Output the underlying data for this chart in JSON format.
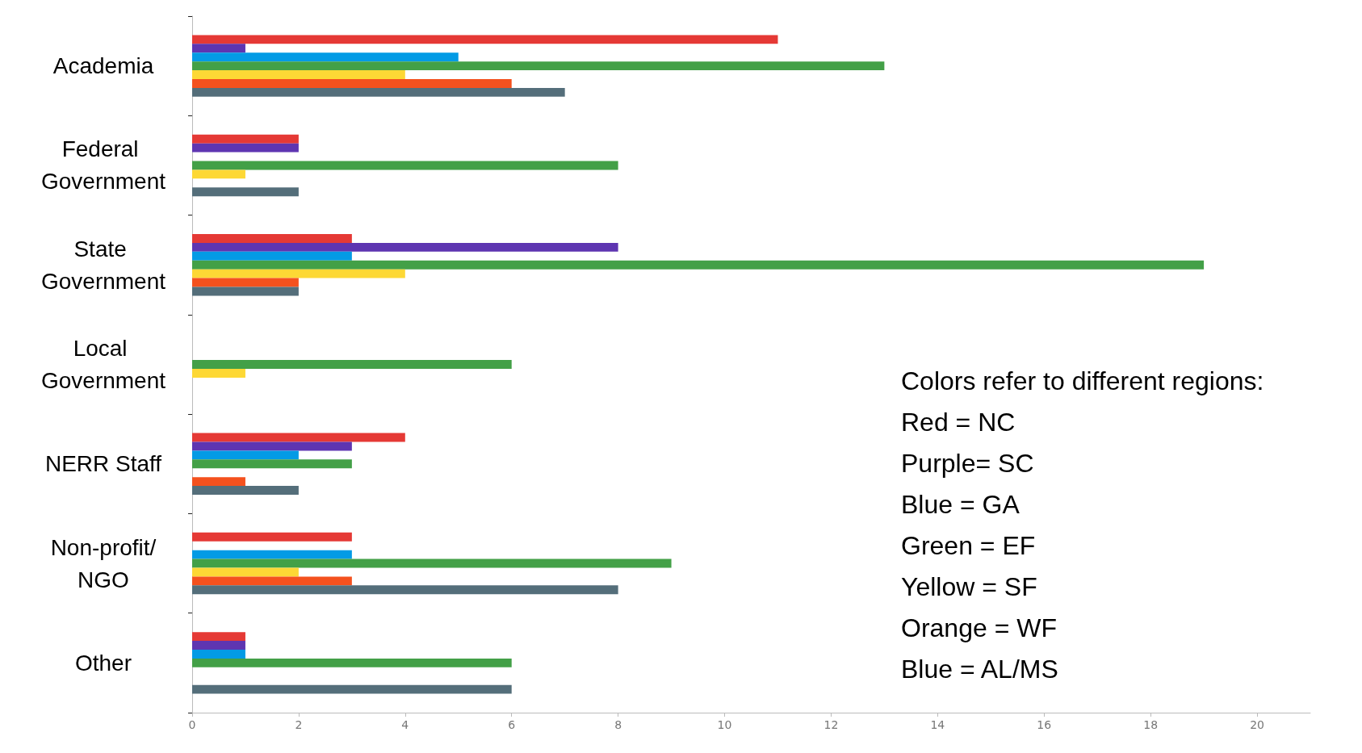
{
  "chart_data": {
    "type": "bar",
    "orientation": "horizontal",
    "categories": [
      "Academia",
      "Federal Government",
      "State Government",
      "Local Government",
      "NERR Staff",
      "Non-profit/NGO",
      "Other"
    ],
    "series": [
      {
        "color": "#e53935",
        "values": [
          11,
          2,
          3,
          null,
          4,
          3,
          1
        ]
      },
      {
        "color": "#5e35b1",
        "values": [
          1,
          2,
          8,
          null,
          3,
          null,
          1
        ]
      },
      {
        "color": "#039be5",
        "values": [
          5,
          null,
          3,
          null,
          2,
          3,
          1
        ]
      },
      {
        "color": "#43a047",
        "values": [
          13,
          8,
          19,
          6,
          3,
          9,
          6
        ]
      },
      {
        "color": "#fdd835",
        "values": [
          4,
          1,
          4,
          1,
          null,
          2,
          null
        ]
      },
      {
        "color": "#f4511e",
        "values": [
          6,
          null,
          2,
          null,
          1,
          3,
          null
        ]
      },
      {
        "color": "#546e7a",
        "values": [
          7,
          2,
          2,
          null,
          2,
          8,
          6
        ]
      }
    ],
    "xlim": [
      0,
      21
    ],
    "xticks": [
      0,
      2,
      4,
      6,
      8,
      10,
      12,
      14,
      16,
      18,
      20
    ],
    "grid": false,
    "annotations": [
      "Colors refer to different regions:",
      "Red = NC",
      "Purple= SC",
      "Blue = GA",
      "Green = EF",
      "Yellow = SF",
      "Orange = WF",
      "Blue = AL/MS"
    ]
  }
}
